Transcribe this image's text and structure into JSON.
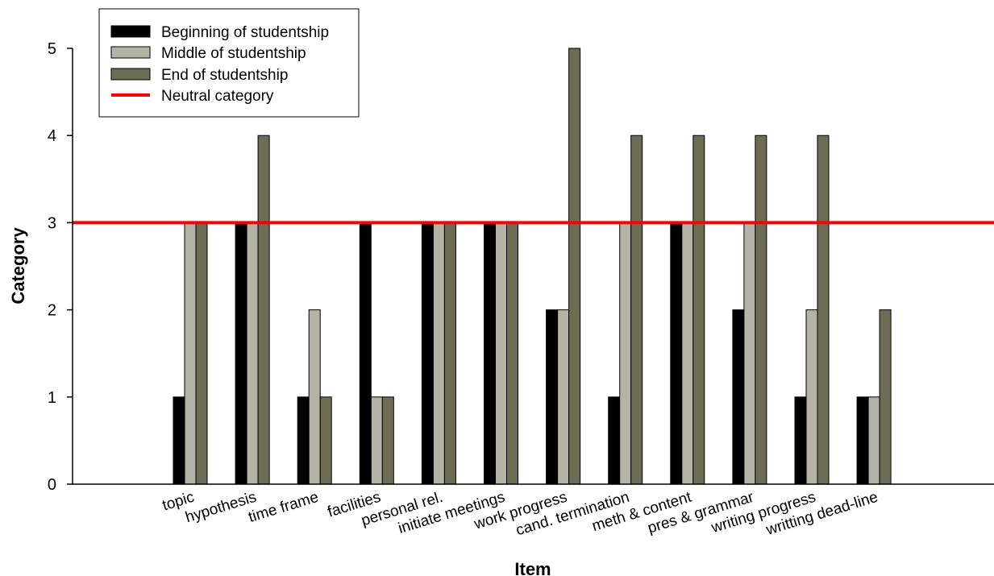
{
  "chart_data": {
    "type": "bar",
    "title": "",
    "xlabel": "Item",
    "ylabel": "Category",
    "ylim": [
      0,
      5
    ],
    "yticks": [
      0,
      1,
      2,
      3,
      4,
      5
    ],
    "grid": false,
    "legend_position": "top-left",
    "categories": [
      "topic",
      "hypothesis",
      "time frame",
      "facilities",
      "personal rel.",
      "initiate meetings",
      "work progress",
      "cand. termination",
      "meth & content",
      "pres & grammar",
      "writing progress",
      "writting dead-line"
    ],
    "series": [
      {
        "name": "Beginning of studentship",
        "color": "#000000",
        "values": [
          1,
          3,
          1,
          3,
          3,
          3,
          2,
          1,
          3,
          2,
          1,
          1
        ]
      },
      {
        "name": "Middle of studentship",
        "color": "#b4b4a6",
        "values": [
          3,
          3,
          2,
          1,
          3,
          3,
          2,
          3,
          3,
          3,
          2,
          1
        ]
      },
      {
        "name": "End of studentship",
        "color": "#6d6d55",
        "values": [
          3,
          4,
          1,
          1,
          3,
          3,
          5,
          4,
          4,
          4,
          4,
          2
        ]
      }
    ],
    "reference_line": {
      "name": "Neutral category",
      "value": 3,
      "color": "#ff0000"
    }
  }
}
